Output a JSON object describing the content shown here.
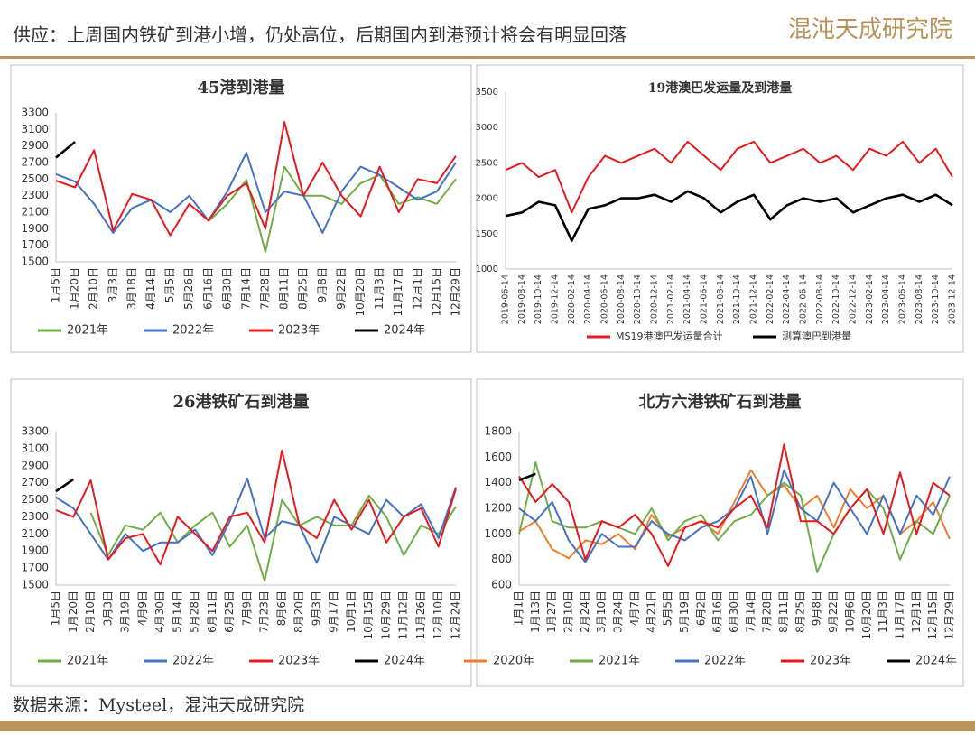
{
  "page": {
    "heading": "供应：上周国内铁矿到港小增，仍处高位，后期国内到港预计将会有明显回落",
    "logo": "混沌天成研究院",
    "source": "数据来源：Mysteel，混沌天成研究院"
  },
  "chart_data": [
    {
      "type": "line",
      "title": "45港到港量",
      "categories": [
        "1月5日",
        "1月20日",
        "2月10日",
        "3月3日",
        "3月18日",
        "4月14日",
        "5月5日",
        "5月26日",
        "6月16日",
        "6月30日",
        "7月14日",
        "7月28日",
        "8月11日",
        "8月25日",
        "9月8日",
        "9月22日",
        "10月20日",
        "11月3日",
        "11月17日",
        "12月1日",
        "12月15日",
        "12月29日"
      ],
      "series": [
        {
          "name": "2021年",
          "color": "#70ad47",
          "values": [
            null,
            null,
            null,
            null,
            null,
            null,
            null,
            null,
            1990,
            2200,
            2490,
            1620,
            2650,
            2300,
            2300,
            2200,
            2450,
            2550,
            2200,
            2280,
            2200,
            2500
          ]
        },
        {
          "name": "2022年",
          "color": "#4472c4",
          "values": [
            2560,
            2470,
            2200,
            1850,
            2150,
            2250,
            2100,
            2300,
            2000,
            2350,
            2820,
            2100,
            2350,
            2300,
            1850,
            2350,
            2650,
            2550,
            2400,
            2250,
            2350,
            2700
          ]
        },
        {
          "name": "2023年",
          "color": "#e41a1c",
          "values": [
            2480,
            2400,
            2850,
            1880,
            2320,
            2250,
            1820,
            2200,
            2000,
            2300,
            2450,
            1900,
            3190,
            2300,
            2700,
            2300,
            2050,
            2650,
            2100,
            2500,
            2450,
            2780
          ]
        },
        {
          "name": "2024年",
          "color": "#000000",
          "values": [
            2760,
            2950,
            null,
            null,
            null,
            null,
            null,
            null,
            null,
            null,
            null,
            null,
            null,
            null,
            null,
            null,
            null,
            null,
            null,
            null,
            null,
            null
          ]
        }
      ],
      "ylim": [
        1500,
        3300
      ],
      "yticks": [
        1500,
        1700,
        1900,
        2100,
        2300,
        2500,
        2700,
        2900,
        3100,
        3300
      ],
      "legend": "bottom"
    },
    {
      "type": "line",
      "title": "19港澳巴发运量及到港量",
      "categories": [
        "2019-06-14",
        "2019-08-14",
        "2019-10-14",
        "2019-12-14",
        "2020-02-14",
        "2020-04-14",
        "2020-06-14",
        "2020-08-14",
        "2020-10-14",
        "2020-12-14",
        "2021-02-14",
        "2021-04-14",
        "2021-06-14",
        "2021-08-14",
        "2021-10-14",
        "2021-12-14",
        "2022-02-14",
        "2022-04-14",
        "2022-06-14",
        "2022-08-14",
        "2022-10-14",
        "2022-12-14",
        "2023-02-14",
        "2023-04-14",
        "2023-06-14",
        "2023-08-14",
        "2023-10-14",
        "2023-12-14"
      ],
      "series": [
        {
          "name": "MS19港澳巴发运量合计",
          "color": "#e41a1c",
          "values": [
            2400,
            2500,
            2300,
            2400,
            1800,
            2300,
            2600,
            2500,
            2600,
            2700,
            2500,
            2800,
            2600,
            2400,
            2700,
            2800,
            2500,
            2600,
            2700,
            2500,
            2600,
            2400,
            2700,
            2600,
            2800,
            2500,
            2700,
            2300
          ]
        },
        {
          "name": "测算澳巴到港量",
          "color": "#000000",
          "values": [
            1750,
            1800,
            1950,
            1900,
            1400,
            1850,
            1900,
            2000,
            2000,
            2050,
            1950,
            2100,
            2000,
            1800,
            1950,
            2050,
            1700,
            1900,
            2000,
            1950,
            2000,
            1800,
            1900,
            2000,
            2050,
            1950,
            2050,
            1900
          ]
        }
      ],
      "ylim": [
        1000,
        3500
      ],
      "yticks": [
        1000,
        1500,
        2000,
        2500,
        3000,
        3500
      ],
      "legend": "bottom"
    },
    {
      "type": "line",
      "title": "26港铁矿石到港量",
      "categories": [
        "1月5日",
        "1月20日",
        "2月10日",
        "3月3日",
        "3月19日",
        "4月9日",
        "4月30日",
        "5月14日",
        "5月28日",
        "6月11日",
        "6月25日",
        "7月9日",
        "7月23日",
        "8月6日",
        "8月20日",
        "9月3日",
        "9月17日",
        "10月1日",
        "10月15日",
        "10月29日",
        "11月12日",
        "11月26日",
        "12月10日",
        "12月24日"
      ],
      "series": [
        {
          "name": "2021年",
          "color": "#70ad47",
          "values": [
            null,
            null,
            2350,
            1850,
            2200,
            2150,
            2350,
            2000,
            2200,
            2350,
            1950,
            2200,
            1550,
            2500,
            2200,
            2300,
            2200,
            2200,
            2550,
            2300,
            1850,
            2200,
            2100,
            2420
          ]
        },
        {
          "name": "2022年",
          "color": "#4472c4",
          "values": [
            2530,
            2400,
            2100,
            1800,
            2100,
            1900,
            2000,
            2000,
            2150,
            1850,
            2250,
            2750,
            2050,
            2250,
            2200,
            1760,
            2300,
            2200,
            2100,
            2500,
            2300,
            2450,
            2050,
            2650
          ]
        },
        {
          "name": "2023年",
          "color": "#e41a1c",
          "values": [
            2380,
            2300,
            2730,
            1800,
            2050,
            2100,
            1740,
            2300,
            2100,
            1900,
            2300,
            2350,
            2000,
            3080,
            2200,
            2050,
            2500,
            2150,
            2500,
            2000,
            2300,
            2400,
            1950,
            2630
          ]
        },
        {
          "name": "2024年",
          "color": "#000000",
          "values": [
            2600,
            2740,
            null,
            null,
            null,
            null,
            null,
            null,
            null,
            null,
            null,
            null,
            null,
            null,
            null,
            null,
            null,
            null,
            null,
            null,
            null,
            null,
            null,
            null
          ]
        }
      ],
      "ylim": [
        1500,
        3300
      ],
      "yticks": [
        1500,
        1700,
        1900,
        2100,
        2300,
        2500,
        2700,
        2900,
        3100,
        3300
      ],
      "legend": "bottom"
    },
    {
      "type": "line",
      "title": "北方六港铁矿石到港量",
      "categories": [
        "1月1日",
        "1月13日",
        "1月27日",
        "2月10日",
        "2月24日",
        "3月10日",
        "3月24日",
        "4月7日",
        "4月21日",
        "5月5日",
        "5月19日",
        "6月2日",
        "6月16日",
        "6月30日",
        "7月14日",
        "7月28日",
        "8月11日",
        "8月25日",
        "9月8日",
        "9月22日",
        "10月6日",
        "10月20日",
        "11月3日",
        "11月17日",
        "12月1日",
        "12月15日",
        "12月29日"
      ],
      "series": [
        {
          "name": "2020年",
          "color": "#ed7d31",
          "values": [
            1020,
            1100,
            880,
            810,
            950,
            920,
            1000,
            880,
            1150,
            980,
            1050,
            1100,
            1000,
            1250,
            1500,
            1300,
            1380,
            1200,
            1300,
            1050,
            1350,
            1200,
            1300,
            1000,
            1100,
            1250,
            960
          ]
        },
        {
          "name": "2021年",
          "color": "#70ad47",
          "values": [
            1000,
            1560,
            1100,
            1050,
            1050,
            1100,
            1050,
            1000,
            1200,
            950,
            1100,
            1150,
            950,
            1100,
            1150,
            1300,
            1400,
            1300,
            700,
            1000,
            1200,
            1350,
            1200,
            800,
            1100,
            1000,
            1300
          ]
        },
        {
          "name": "2022年",
          "color": "#4472c4",
          "values": [
            1200,
            1100,
            1250,
            950,
            780,
            1000,
            900,
            900,
            1100,
            1000,
            950,
            1050,
            1100,
            1200,
            1450,
            1000,
            1500,
            1200,
            1100,
            1400,
            1200,
            1000,
            1300,
            1000,
            1300,
            1150,
            1450
          ]
        },
        {
          "name": "2023年",
          "color": "#e41a1c",
          "values": [
            1450,
            1250,
            1390,
            1250,
            800,
            1100,
            1050,
            1150,
            1000,
            750,
            1050,
            1100,
            1050,
            1200,
            1300,
            1050,
            1700,
            1100,
            1100,
            1000,
            1200,
            1350,
            1000,
            1480,
            1000,
            1400,
            1300
          ]
        },
        {
          "name": "2024年",
          "color": "#000000",
          "values": [
            1420,
            1470,
            null,
            null,
            null,
            null,
            null,
            null,
            null,
            null,
            null,
            null,
            null,
            null,
            null,
            null,
            null,
            null,
            null,
            null,
            null,
            null,
            null,
            null,
            null,
            null,
            null
          ]
        }
      ],
      "ylim": [
        600,
        1800
      ],
      "yticks": [
        600,
        800,
        1000,
        1200,
        1400,
        1600,
        1800
      ],
      "legend": "bottom"
    }
  ]
}
